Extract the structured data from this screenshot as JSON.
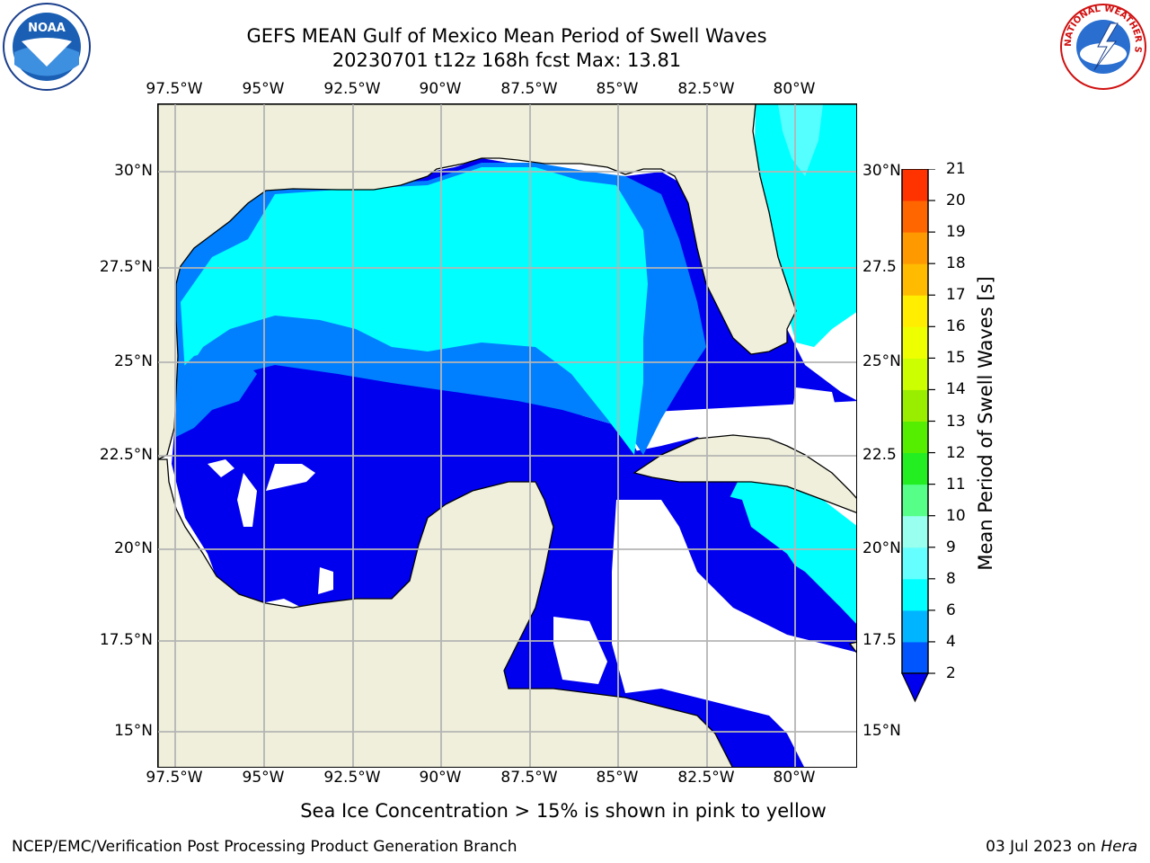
{
  "title_line1": "GEFS MEAN Gulf of Mexico Mean Period of Swell Waves",
  "title_line2": "20230701 t12z 168h fcst   Max: 13.81",
  "lon_labels": [
    "97.5°W",
    "95°W",
    "92.5°W",
    "90°W",
    "87.5°W",
    "85°W",
    "82.5°W",
    "80°W"
  ],
  "lat_labels": [
    "30°N",
    "27.5°N",
    "25°N",
    "22.5°N",
    "20°N",
    "17.5°N",
    "15°N"
  ],
  "lat_labels_right": [
    "30°N",
    "27.5",
    "25°N",
    "22.5",
    "20°N",
    "17.5",
    "15°N"
  ],
  "colorbar": {
    "title": "Mean Period of Swell Waves [s]",
    "ticks": [
      "2",
      "4",
      "6",
      "8",
      "9",
      "10",
      "11",
      "12",
      "13",
      "14",
      "15",
      "16",
      "17",
      "18",
      "19",
      "20",
      "21"
    ],
    "colors": [
      "#0055ff",
      "#00b4ff",
      "#00ffff",
      "#66ffff",
      "#99ffee",
      "#55ff88",
      "#22ee22",
      "#55ee00",
      "#99ee00",
      "#ccff00",
      "#eeff00",
      "#ffee00",
      "#ffbb00",
      "#ff9900",
      "#ff6600",
      "#ff3300",
      "#ff0000"
    ],
    "under_color": "#0000ee"
  },
  "map_colors": {
    "land": "#efefdc",
    "ocean_blank": "#ffffff",
    "p2_4": "#0080ff",
    "under2": "#0000ee",
    "p4_6": "#00ffff",
    "p6_8": "#55ffff",
    "p11_12": "#88ee22",
    "p13_14": "#ccff00",
    "grid": "#b4b4b4"
  },
  "sea_ice_note": "Sea Ice Concentration > 15% is shown in pink to yellow",
  "footer_left": "NCEP/EMC/Verification Post Processing Product Generation Branch",
  "footer_date": "03 Jul 2023",
  "footer_on": "on",
  "footer_machine": "Hera",
  "logos": {
    "noaa_text": "NOAA",
    "nws_ring_text": "NATIONAL WEATHER SERVICE"
  }
}
